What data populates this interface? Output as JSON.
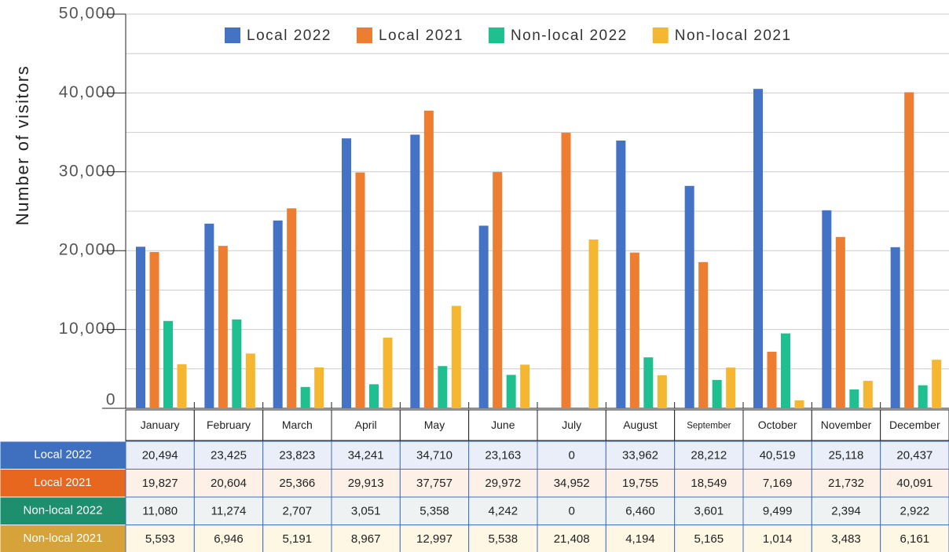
{
  "chart_data": {
    "type": "bar",
    "y_label": "Number of visitors",
    "categories": [
      "January",
      "February",
      "March",
      "April",
      "May",
      "June",
      "July",
      "August",
      "September",
      "October",
      "November",
      "December"
    ],
    "series": [
      {
        "name": "Local 2022",
        "color": "#4472c4",
        "values": [
          20494,
          23425,
          23823,
          34241,
          34710,
          23163,
          0,
          33962,
          28212,
          40519,
          25118,
          20437
        ],
        "value_labels": [
          "20,494",
          "23,425",
          "23,823",
          "34,241",
          "34,710",
          "23,163",
          "0",
          "33,962",
          "28,212",
          "40,519",
          "25,118",
          "20,437"
        ]
      },
      {
        "name": "Local 2021",
        "color": "#ed7d31",
        "values": [
          19827,
          20604,
          25366,
          29913,
          37757,
          29972,
          34952,
          19755,
          18549,
          7169,
          21732,
          40091
        ],
        "value_labels": [
          "19,827",
          "20,604",
          "25,366",
          "29,913",
          "37,757",
          "29,972",
          "34,952",
          "19,755",
          "18,549",
          "7,169",
          "21,732",
          "40,091"
        ]
      },
      {
        "name": "Non-local 2022",
        "color": "#1fbf8f",
        "values": [
          11080,
          11274,
          2707,
          3051,
          5358,
          4242,
          0,
          6460,
          3601,
          9499,
          2394,
          2922
        ],
        "value_labels": [
          "11,080",
          "11,274",
          "2,707",
          "3,051",
          "5,358",
          "4,242",
          "0",
          "6,460",
          "3,601",
          "9,499",
          "2,394",
          "2,922"
        ]
      },
      {
        "name": "Non-local 2021",
        "color": "#f5b731",
        "values": [
          5593,
          6946,
          5191,
          8967,
          12997,
          5538,
          21408,
          4194,
          5165,
          1014,
          3483,
          6161
        ],
        "value_labels": [
          "5,593",
          "6,946",
          "5,191",
          "8,967",
          "12,997",
          "5,538",
          "21,408",
          "4,194",
          "5,165",
          "1,014",
          "3,483",
          "6,161"
        ]
      }
    ],
    "ylim": [
      0,
      50000
    ],
    "yticks": [
      0,
      {
        "value": 10000,
        "label": "10,000"
      },
      {
        "value": 20000,
        "label": "20,000"
      },
      {
        "value": 30000,
        "label": "30,000"
      },
      {
        "value": 40000,
        "label": "40,000"
      },
      {
        "value": 50000,
        "label": "50,000"
      }
    ],
    "minor_yticks": [
      5000,
      15000,
      25000,
      35000,
      45000
    ],
    "grid": true,
    "legend": "top"
  }
}
